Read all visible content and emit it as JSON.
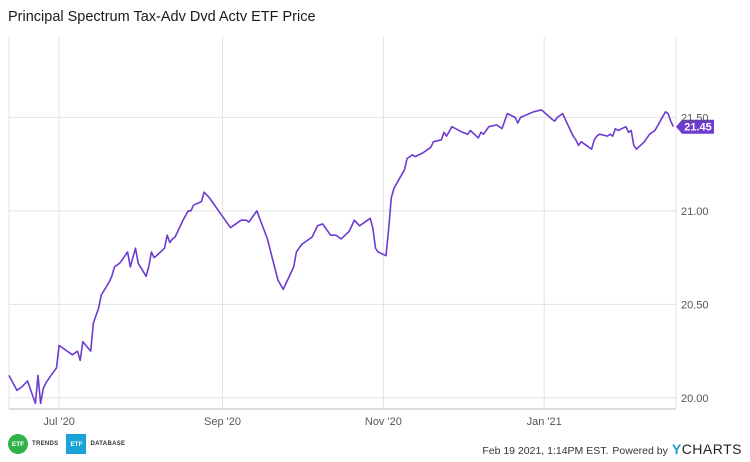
{
  "title": "Principal Spectrum Tax-Adv Dvd Actv ETF Price",
  "colors": {
    "line": "#6c3bd1",
    "grid": "#e3e3e3",
    "axis": "#bbbbbb"
  },
  "chart_data": {
    "type": "line",
    "title": "Principal Spectrum Tax-Adv Dvd Actv ETF Price",
    "x_ticks": [
      "Jul '20",
      "Sep '20",
      "Nov '20",
      "Jan '21"
    ],
    "y_ticks": [
      "20.00",
      "20.50",
      "21.00",
      "21.50"
    ],
    "ylim": [
      19.94,
      21.93
    ],
    "grid": true,
    "last_value_label": "21.45",
    "series": [
      {
        "x": [
          "2020-06-12",
          "2020-06-15",
          "2020-06-17",
          "2020-06-19",
          "2020-06-22",
          "2020-06-23",
          "2020-06-24",
          "2020-06-25",
          "2020-06-26",
          "2020-06-29",
          "2020-06-30",
          "2020-07-01",
          "2020-07-06",
          "2020-07-08",
          "2020-07-09",
          "2020-07-10",
          "2020-07-13",
          "2020-07-14",
          "2020-07-16",
          "2020-07-17",
          "2020-07-20",
          "2020-07-21",
          "2020-07-22",
          "2020-07-24",
          "2020-07-27",
          "2020-07-28",
          "2020-07-30",
          "2020-07-31",
          "2020-08-03",
          "2020-08-04",
          "2020-08-05",
          "2020-08-06",
          "2020-08-07",
          "2020-08-10",
          "2020-08-11",
          "2020-08-12",
          "2020-08-13",
          "2020-08-14",
          "2020-08-17",
          "2020-08-19",
          "2020-08-20",
          "2020-08-21",
          "2020-08-24",
          "2020-08-25",
          "2020-08-27",
          "2020-08-28",
          "2020-08-31",
          "2020-09-02",
          "2020-09-03",
          "2020-09-04",
          "2020-09-08",
          "2020-09-10",
          "2020-09-11",
          "2020-09-14",
          "2020-09-18",
          "2020-09-22",
          "2020-09-24",
          "2020-09-28",
          "2020-09-29",
          "2020-09-30",
          "2020-10-01",
          "2020-10-05",
          "2020-10-07",
          "2020-10-09",
          "2020-10-12",
          "2020-10-14",
          "2020-10-15",
          "2020-10-16",
          "2020-10-19",
          "2020-10-21",
          "2020-10-23",
          "2020-10-27",
          "2020-10-28",
          "2020-10-29",
          "2020-10-30",
          "2020-11-02",
          "2020-11-03",
          "2020-11-04",
          "2020-11-05",
          "2020-11-09",
          "2020-11-10",
          "2020-11-12",
          "2020-11-13",
          "2020-11-16",
          "2020-11-19",
          "2020-11-20",
          "2020-11-23",
          "2020-11-24",
          "2020-11-25",
          "2020-11-27",
          "2020-12-01",
          "2020-12-03",
          "2020-12-04",
          "2020-12-07",
          "2020-12-08",
          "2020-12-09",
          "2020-12-10",
          "2020-12-11",
          "2020-12-14",
          "2020-12-16",
          "2020-12-18",
          "2020-12-21",
          "2020-12-22",
          "2020-12-23",
          "2020-12-28",
          "2020-12-31",
          "2021-01-04",
          "2021-01-05",
          "2021-01-06",
          "2021-01-07",
          "2021-01-08",
          "2021-01-11",
          "2021-01-12",
          "2021-01-13",
          "2021-01-14",
          "2021-01-15",
          "2021-01-19",
          "2021-01-20",
          "2021-01-21",
          "2021-01-22",
          "2021-01-25",
          "2021-01-26",
          "2021-01-27",
          "2021-01-28",
          "2021-01-29",
          "2021-02-01",
          "2021-02-02",
          "2021-02-03",
          "2021-02-04",
          "2021-02-05",
          "2021-02-08",
          "2021-02-10",
          "2021-02-12",
          "2021-02-16",
          "2021-02-17",
          "2021-02-18",
          "2021-02-19"
        ],
        "y": [
          20.12,
          20.04,
          20.06,
          20.09,
          19.97,
          20.12,
          19.97,
          20.05,
          20.08,
          20.14,
          20.16,
          20.28,
          20.23,
          20.25,
          20.2,
          20.3,
          20.25,
          20.4,
          20.48,
          20.55,
          20.62,
          20.65,
          20.7,
          20.72,
          20.78,
          20.7,
          20.8,
          20.72,
          20.65,
          20.7,
          20.78,
          20.75,
          20.76,
          20.8,
          20.87,
          20.83,
          20.85,
          20.86,
          20.95,
          21.0,
          21.0,
          21.03,
          21.05,
          21.1,
          21.07,
          21.05,
          20.99,
          20.95,
          20.93,
          20.91,
          20.95,
          20.95,
          20.94,
          21.0,
          20.85,
          20.63,
          20.58,
          20.7,
          20.78,
          20.8,
          20.82,
          20.86,
          20.92,
          20.93,
          20.87,
          20.87,
          20.86,
          20.85,
          20.89,
          20.95,
          20.92,
          20.96,
          20.91,
          20.8,
          20.78,
          20.76,
          20.9,
          21.07,
          21.12,
          21.22,
          21.28,
          21.3,
          21.29,
          21.31,
          21.34,
          21.37,
          21.38,
          21.42,
          21.4,
          21.45,
          21.42,
          21.41,
          21.43,
          21.39,
          21.42,
          21.41,
          21.43,
          21.45,
          21.46,
          21.44,
          21.52,
          21.5,
          21.47,
          21.5,
          21.53,
          21.54,
          21.49,
          21.48,
          21.5,
          21.51,
          21.52,
          21.43,
          21.4,
          21.38,
          21.35,
          21.37,
          21.33,
          21.38,
          21.4,
          21.41,
          21.4,
          21.41,
          21.4,
          21.44,
          21.43,
          21.45,
          21.42,
          21.43,
          21.35,
          21.33,
          21.37,
          21.41,
          21.43,
          21.53,
          21.52,
          21.48,
          21.45
        ]
      }
    ]
  },
  "footer": {
    "logo1_mark": "ETF",
    "logo1_word": "TRENDS",
    "logo2_mark": "ETF",
    "logo2_word": "DATABASE",
    "timestamp": "Feb 19 2021, 1:14PM EST.",
    "powered_by": "Powered by",
    "brand_initial": "Y",
    "brand_rest": "CHARTS"
  }
}
